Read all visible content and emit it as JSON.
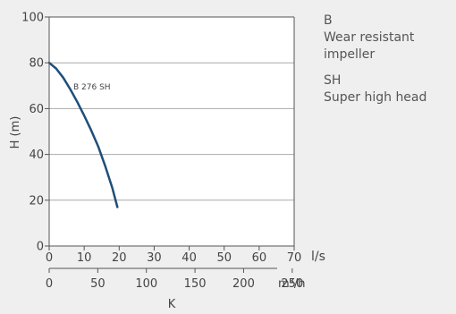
{
  "chart_data": {
    "type": "line",
    "ylabel": "H (m)",
    "yticks": [
      0,
      20,
      40,
      60,
      80,
      100
    ],
    "ylim": [
      0,
      100
    ],
    "xlabel_primary_unit": "l/s",
    "xticks_primary": [
      0,
      10,
      20,
      30,
      40,
      50,
      60,
      70
    ],
    "xlim_primary": [
      0,
      70
    ],
    "xlabel_secondary_unit": "m³/h",
    "xticks_secondary": [
      0,
      50,
      100,
      150,
      200,
      250
    ],
    "xlim_secondary": [
      0,
      252
    ],
    "bottom_label": "K",
    "grid": "horizontal",
    "series": [
      {
        "name": "B 276 SH",
        "color": "#1f4e79",
        "x": [
          0,
          2,
          4,
          6,
          8,
          10,
          12,
          14,
          16,
          18,
          19.5
        ],
        "y": [
          80,
          77.5,
          73.5,
          68.5,
          63,
          57,
          50.5,
          43.5,
          35,
          25.5,
          17
        ]
      }
    ]
  },
  "legend": [
    {
      "code": "B",
      "desc": "Wear resistant impeller"
    },
    {
      "code": "SH",
      "desc": "Super high head"
    }
  ]
}
